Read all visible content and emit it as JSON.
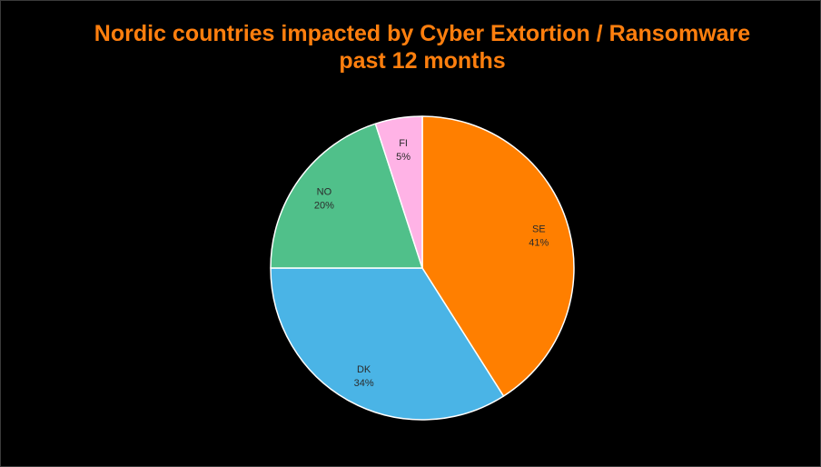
{
  "chart_data": {
    "type": "pie",
    "title_line1": "Nordic countries impacted by Cyber Extortion / Ransomware",
    "title_line2": "past 12 months",
    "categories": [
      "SE",
      "DK",
      "NO",
      "FI"
    ],
    "values": [
      41,
      34,
      20,
      5
    ],
    "labels": [
      "41%",
      "34%",
      "20%",
      "5%"
    ],
    "colors": [
      "#ff7f00",
      "#4ab4e6",
      "#50c08a",
      "#ffb3e6"
    ],
    "start_angle_deg": 0,
    "direction": "clockwise",
    "slice_edge_color": "#ffffff",
    "legend": "none"
  }
}
